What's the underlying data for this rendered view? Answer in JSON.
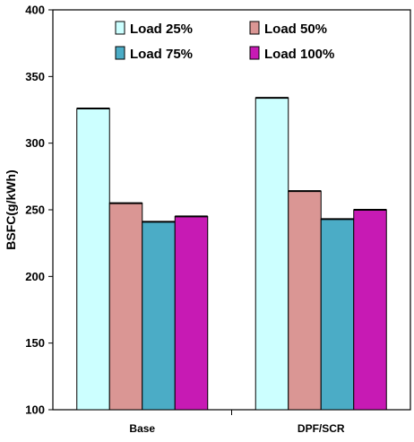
{
  "chart_data": {
    "type": "bar",
    "title": "",
    "xlabel": "",
    "ylabel": "BSFC(g/kWh)",
    "ylim": [
      100,
      400
    ],
    "yticks": [
      100,
      150,
      200,
      250,
      300,
      350,
      400
    ],
    "grid": false,
    "legend_position": "top",
    "categories": [
      "Base",
      "DPF/SCR"
    ],
    "series": [
      {
        "name": "Load 25%",
        "values": [
          326,
          334
        ],
        "color": "#CCFFFF"
      },
      {
        "name": "Load 50%",
        "values": [
          255,
          264
        ],
        "color": "#DA9694"
      },
      {
        "name": "Load 75%",
        "values": [
          241,
          243
        ],
        "color": "#4BACC6"
      },
      {
        "name": "Load 100%",
        "values": [
          245,
          250
        ],
        "color": "#C71AB4"
      }
    ]
  }
}
